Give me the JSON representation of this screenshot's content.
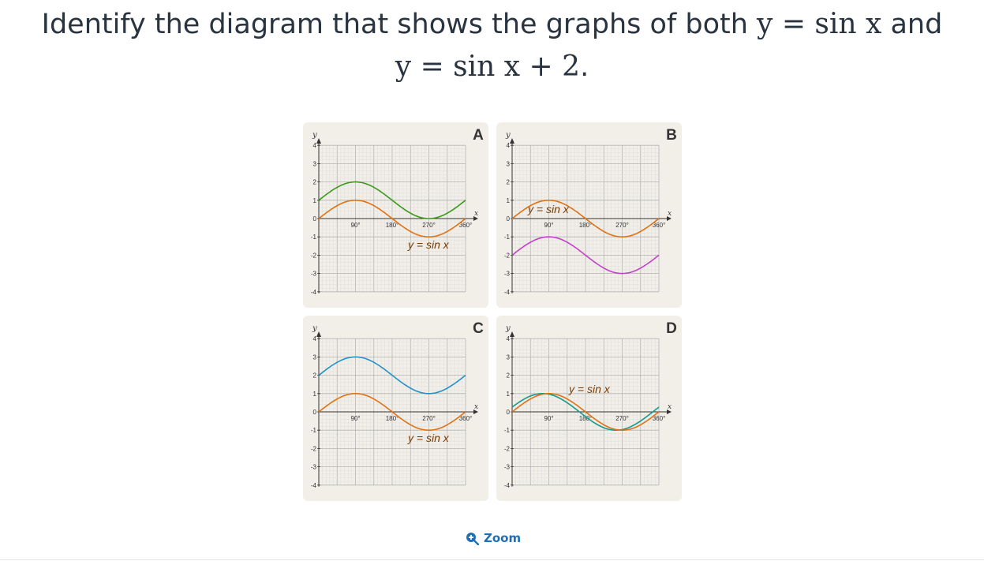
{
  "question": {
    "line1_prefix": "Identify the diagram that shows the graphs of both ",
    "line1_math": "y = sin x",
    "line1_and": " and",
    "line2_math": "y = sin x + 2",
    "line2_suffix": "."
  },
  "diagrams": [
    {
      "letter": "A",
      "label": "y = sin x"
    },
    {
      "letter": "B",
      "label": "y = sin x"
    },
    {
      "letter": "C",
      "label": "y = sin x"
    },
    {
      "letter": "D",
      "label": "y = sin x"
    }
  ],
  "axes": {
    "x_symbol": "x",
    "y_symbol": "y",
    "x_ticks": [
      "90°",
      "180°",
      "270°",
      "360°"
    ],
    "y_ticks": [
      "4",
      "3",
      "2",
      "1",
      "0",
      "-1",
      "-2",
      "-3",
      "-4"
    ]
  },
  "colors": {
    "sin_curve": "#e07214",
    "panel_a_other": "#3a9a1a",
    "panel_b_other": "#c43fc8",
    "panel_c_other": "#2191c9",
    "panel_d_other": "#139b8c",
    "grid": "#cfcfcf",
    "accent": "#1e6fb5"
  },
  "zoom": {
    "label": "Zoom",
    "icon": "zoom-in-icon"
  }
}
